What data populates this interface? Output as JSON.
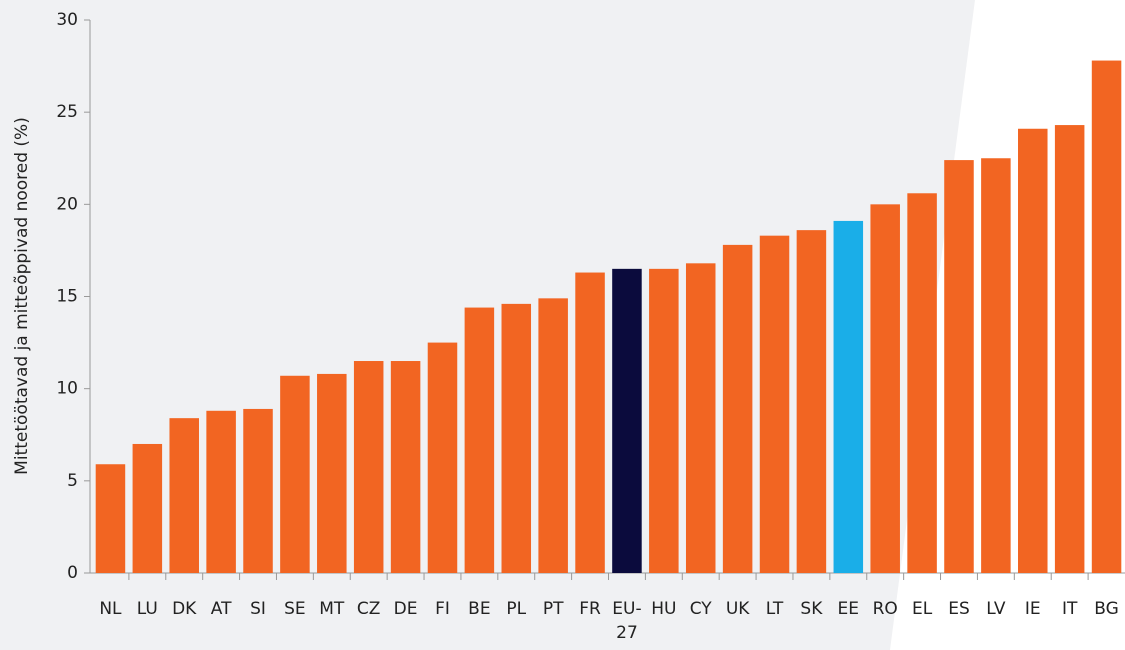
{
  "chart_data": {
    "type": "bar",
    "y_label": "Mittetöötavad ja mitteõppivad noored (%)",
    "categories": [
      "NL",
      "LU",
      "DK",
      "AT",
      "SI",
      "SE",
      "MT",
      "CZ",
      "DE",
      "FI",
      "BE",
      "PL",
      "PT",
      "FR",
      "EU-27",
      "HU",
      "CY",
      "UK",
      "LT",
      "SK",
      "EE",
      "RO",
      "EL",
      "ES",
      "LV",
      "IE",
      "IT",
      "BG"
    ],
    "values": [
      5.9,
      7.0,
      8.4,
      8.8,
      8.9,
      10.7,
      10.8,
      11.5,
      11.5,
      12.5,
      14.4,
      14.6,
      14.9,
      16.3,
      16.5,
      16.5,
      16.8,
      17.8,
      18.3,
      18.6,
      19.1,
      20.0,
      20.6,
      22.4,
      22.5,
      24.1,
      24.3,
      27.8
    ],
    "colors": [
      "#f26522",
      "#f26522",
      "#f26522",
      "#f26522",
      "#f26522",
      "#f26522",
      "#f26522",
      "#f26522",
      "#f26522",
      "#f26522",
      "#f26522",
      "#f26522",
      "#f26522",
      "#f26522",
      "#0b0b3d",
      "#f26522",
      "#f26522",
      "#f26522",
      "#f26522",
      "#f26522",
      "#1aaee8",
      "#f26522",
      "#f26522",
      "#f26522",
      "#f26522",
      "#f26522",
      "#f26522",
      "#f26522"
    ],
    "ylim": [
      0,
      30
    ],
    "yticks": [
      0,
      5,
      10,
      15,
      20,
      25,
      30
    ],
    "grid": false
  }
}
